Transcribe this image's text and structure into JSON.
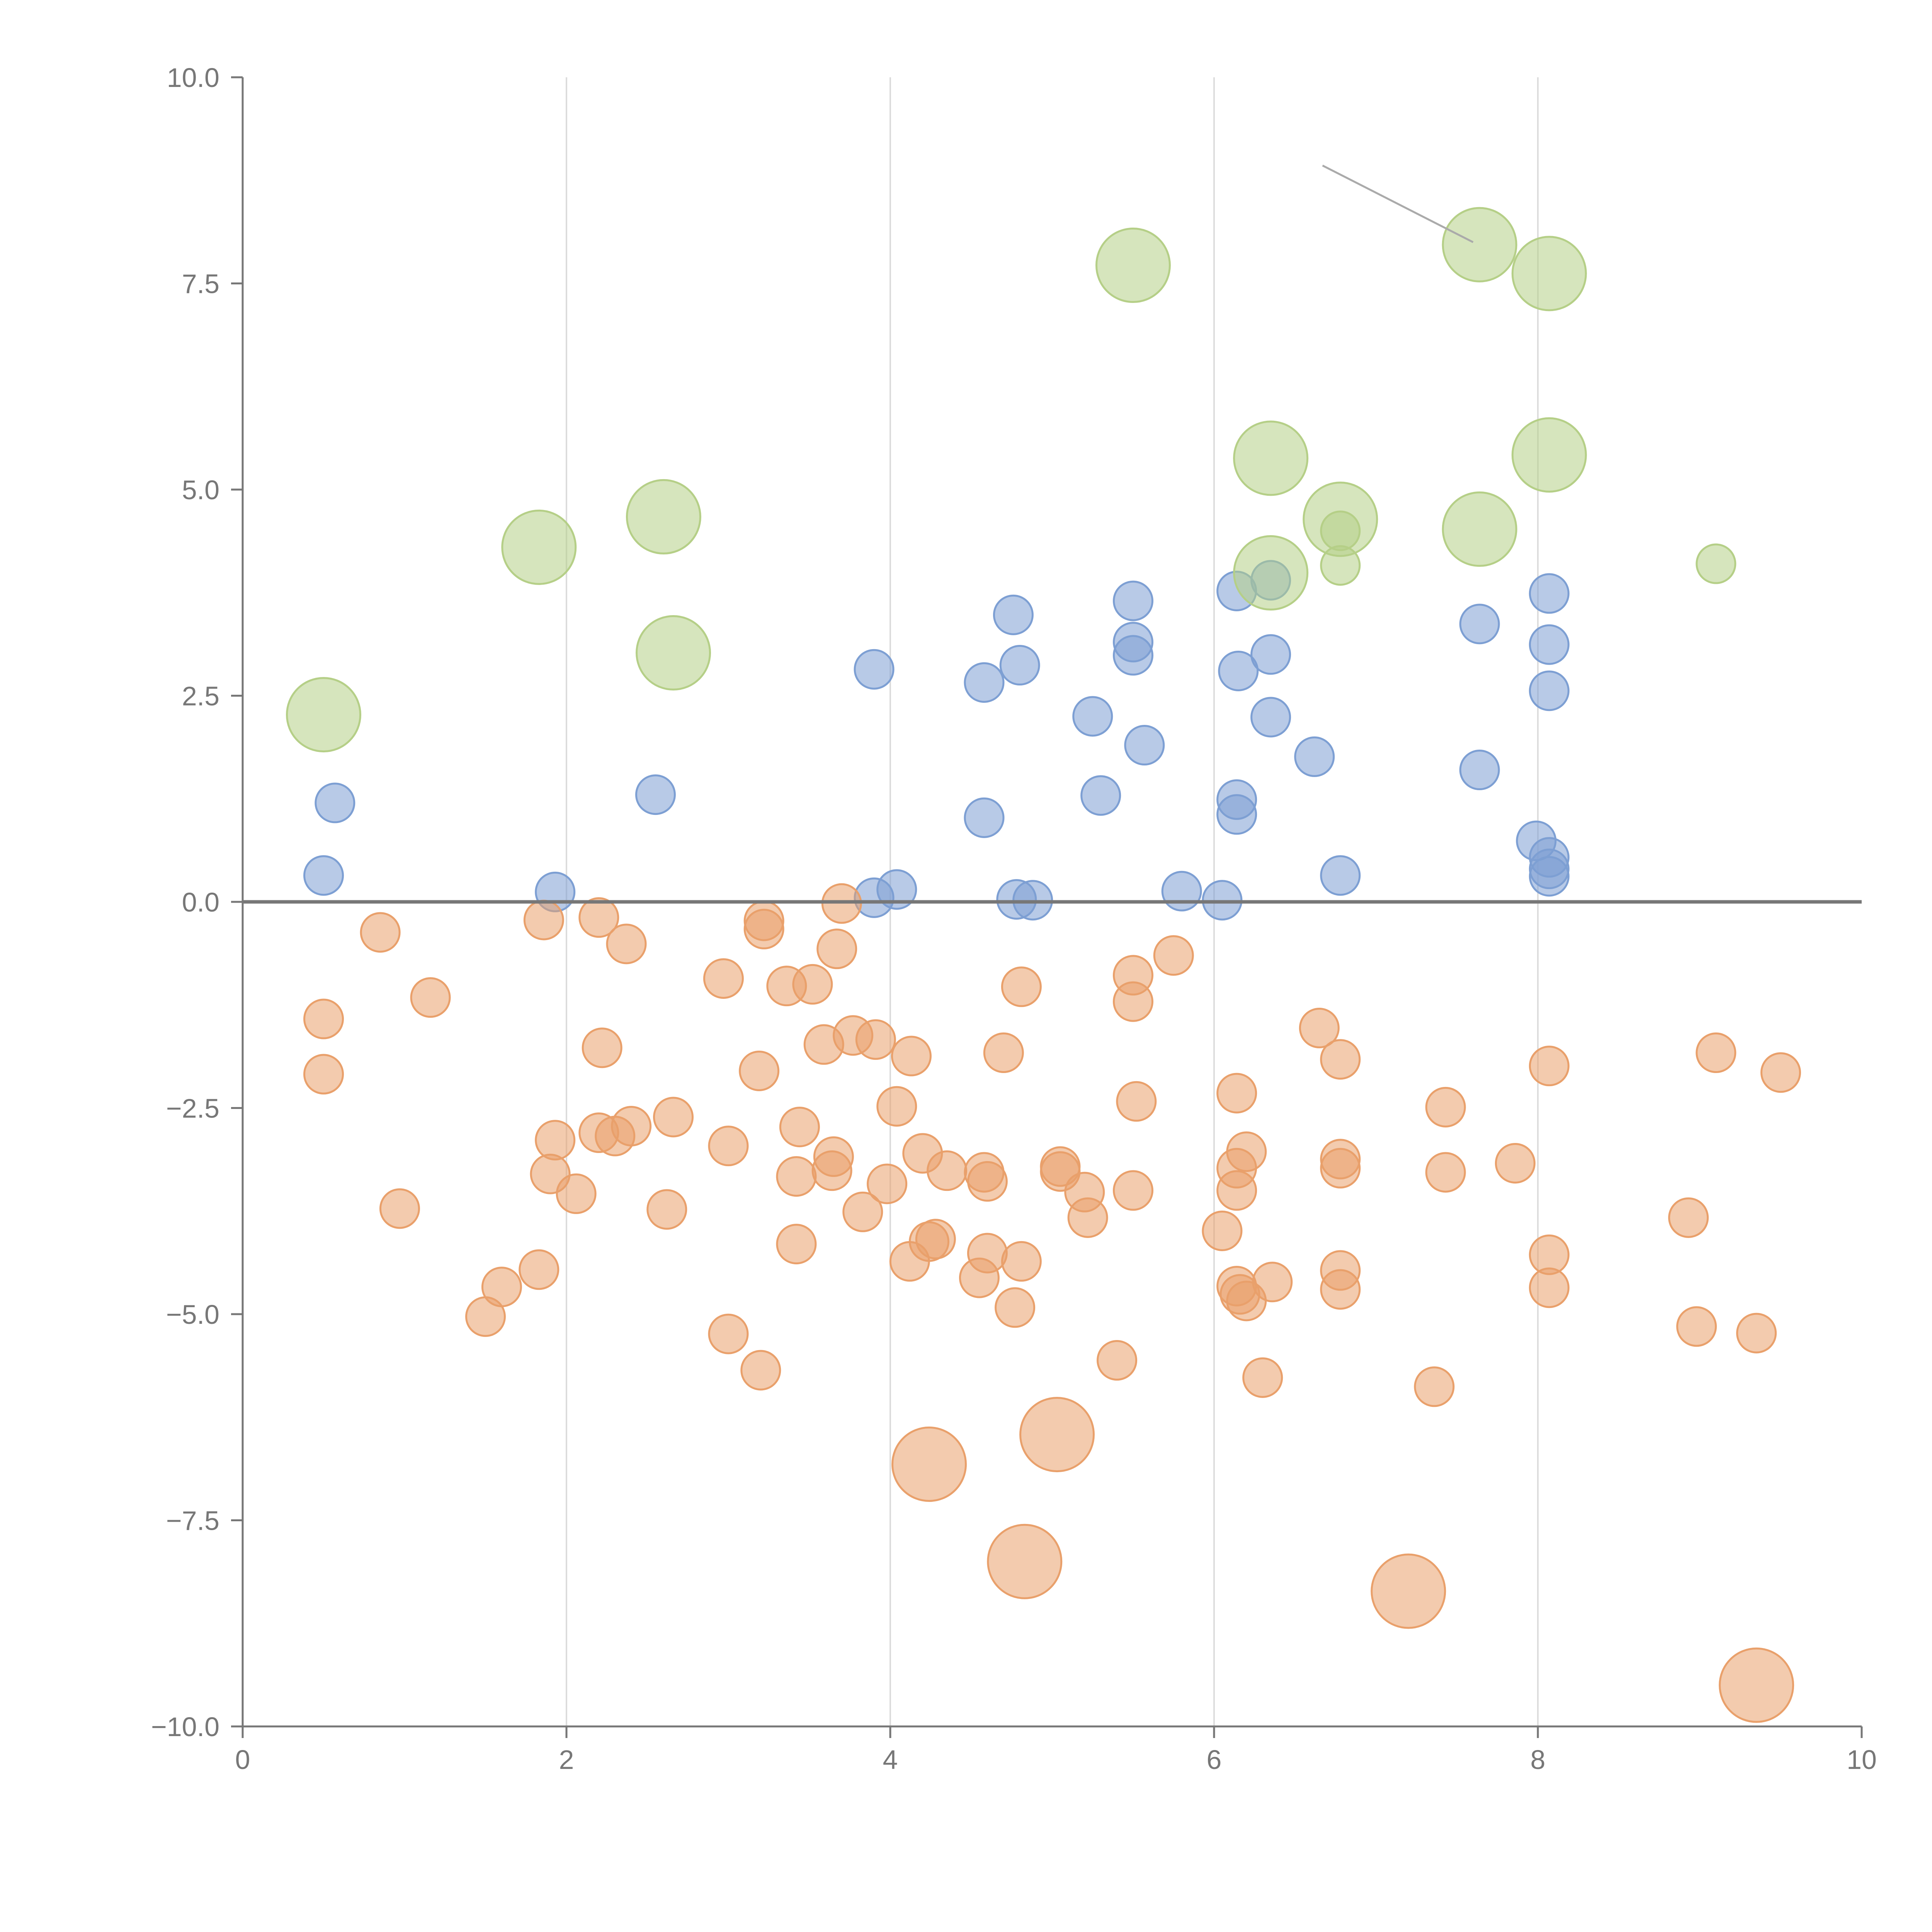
{
  "chart_data": {
    "type": "scatter",
    "title": "",
    "xlabel": "",
    "ylabel": "",
    "xlim": [
      0,
      10
    ],
    "ylim": [
      -10,
      10
    ],
    "x_ticks": [
      0,
      2,
      4,
      6,
      8,
      10
    ],
    "y_ticks": [
      -10,
      -7.5,
      -5,
      -2.5,
      0,
      2.5,
      5,
      7.5,
      10
    ],
    "x_tick_labels": [
      "0",
      "2",
      "4",
      "6",
      "8",
      "10"
    ],
    "y_tick_labels": [
      "−10.0",
      "−7.5",
      "−5.0",
      "−2.5",
      "0.0",
      "2.5",
      "5.0",
      "7.5",
      "10.0"
    ],
    "vertical_gridlines_at": [
      2,
      4,
      6,
      8
    ],
    "reference_line_y": 0,
    "bubble_size_scale": "small = 1, large = 2",
    "series": [
      {
        "name": "blue",
        "color": "#7d9fd3",
        "size": 1,
        "points": [
          [
            0.5,
            0.32
          ],
          [
            0.57,
            1.2
          ],
          [
            1.93,
            0.12
          ],
          [
            2.55,
            1.3
          ],
          [
            3.9,
            2.82
          ],
          [
            3.9,
            0.05
          ],
          [
            4.04,
            0.15
          ],
          [
            4.58,
            2.66
          ],
          [
            4.58,
            1.02
          ],
          [
            4.76,
            3.48
          ],
          [
            4.8,
            2.87
          ],
          [
            4.78,
            0.03
          ],
          [
            4.88,
            0.02
          ],
          [
            5.25,
            2.25
          ],
          [
            5.3,
            1.29
          ],
          [
            5.5,
            3.65
          ],
          [
            5.5,
            3.15
          ],
          [
            5.5,
            2.99
          ],
          [
            5.57,
            1.9
          ],
          [
            5.8,
            0.13
          ],
          [
            6.05,
            0.02
          ],
          [
            6.14,
            3.77
          ],
          [
            6.15,
            2.8
          ],
          [
            6.14,
            1.24
          ],
          [
            6.14,
            1.06
          ],
          [
            6.35,
            3.9
          ],
          [
            6.35,
            3.0
          ],
          [
            6.35,
            2.24
          ],
          [
            6.62,
            1.76
          ],
          [
            6.78,
            0.32
          ],
          [
            7.64,
            3.37
          ],
          [
            7.64,
            1.6
          ],
          [
            7.99,
            0.74
          ],
          [
            8.07,
            3.74
          ],
          [
            8.07,
            3.12
          ],
          [
            8.07,
            2.56
          ],
          [
            8.07,
            0.54
          ],
          [
            8.07,
            0.4
          ],
          [
            8.07,
            0.31
          ]
        ]
      },
      {
        "name": "orange",
        "color": "#e9a06b",
        "size": 1,
        "points": [
          [
            0.5,
            -1.42
          ],
          [
            0.5,
            -2.09
          ],
          [
            0.85,
            -0.37
          ],
          [
            0.97,
            -3.72
          ],
          [
            1.16,
            -1.16
          ],
          [
            1.5,
            -5.03
          ],
          [
            1.6,
            -4.67
          ],
          [
            1.83,
            -4.46
          ],
          [
            1.86,
            -0.22
          ],
          [
            1.9,
            -3.3
          ],
          [
            1.93,
            -2.89
          ],
          [
            2.06,
            -3.54
          ],
          [
            2.2,
            -2.8
          ],
          [
            2.2,
            -0.19
          ],
          [
            2.22,
            -1.77
          ],
          [
            2.3,
            -2.84
          ],
          [
            2.37,
            -0.51
          ],
          [
            2.4,
            -2.72
          ],
          [
            2.62,
            -3.73
          ],
          [
            2.66,
            -2.61
          ],
          [
            2.97,
            -0.93
          ],
          [
            3.0,
            -2.96
          ],
          [
            3.0,
            -5.24
          ],
          [
            3.19,
            -2.05
          ],
          [
            3.2,
            -5.68
          ],
          [
            3.22,
            -0.23
          ],
          [
            3.22,
            -0.33
          ],
          [
            3.36,
            -1.02
          ],
          [
            3.42,
            -4.15
          ],
          [
            3.42,
            -3.33
          ],
          [
            3.44,
            -2.73
          ],
          [
            3.52,
            -1.0
          ],
          [
            3.59,
            -1.73
          ],
          [
            3.64,
            -3.26
          ],
          [
            3.65,
            -3.09
          ],
          [
            3.67,
            -0.57
          ],
          [
            3.7,
            -0.02
          ],
          [
            3.77,
            -1.62
          ],
          [
            3.83,
            -3.76
          ],
          [
            3.91,
            -1.67
          ],
          [
            3.98,
            -3.42
          ],
          [
            4.04,
            -2.48
          ],
          [
            4.12,
            -4.36
          ],
          [
            4.13,
            -1.87
          ],
          [
            4.2,
            -3.05
          ],
          [
            4.24,
            -4.12
          ],
          [
            4.28,
            -4.09
          ],
          [
            4.35,
            -3.26
          ],
          [
            4.55,
            -4.56
          ],
          [
            4.58,
            -3.28
          ],
          [
            4.6,
            -3.39
          ],
          [
            4.6,
            -4.26
          ],
          [
            4.7,
            -1.83
          ],
          [
            4.77,
            -4.92
          ],
          [
            4.81,
            -4.36
          ],
          [
            4.81,
            -1.03
          ],
          [
            5.05,
            -3.21
          ],
          [
            5.05,
            -3.27
          ],
          [
            5.2,
            -3.52
          ],
          [
            5.22,
            -3.83
          ],
          [
            5.4,
            -5.56
          ],
          [
            5.5,
            -0.89
          ],
          [
            5.5,
            -1.21
          ],
          [
            5.5,
            -3.5
          ],
          [
            5.52,
            -2.42
          ],
          [
            5.75,
            -0.65
          ],
          [
            6.05,
            -3.99
          ],
          [
            6.14,
            -2.32
          ],
          [
            6.14,
            -3.23
          ],
          [
            6.14,
            -3.5
          ],
          [
            6.14,
            -4.66
          ],
          [
            6.16,
            -4.76
          ],
          [
            6.2,
            -4.84
          ],
          [
            6.2,
            -3.03
          ],
          [
            6.3,
            -5.77
          ],
          [
            6.36,
            -4.61
          ],
          [
            6.65,
            -1.53
          ],
          [
            6.78,
            -1.91
          ],
          [
            6.78,
            -3.12
          ],
          [
            6.78,
            -3.23
          ],
          [
            6.78,
            -4.47
          ],
          [
            6.78,
            -4.7
          ],
          [
            7.36,
            -5.88
          ],
          [
            7.43,
            -2.49
          ],
          [
            7.43,
            -3.28
          ],
          [
            7.86,
            -3.17
          ],
          [
            8.07,
            -1.99
          ],
          [
            8.07,
            -4.28
          ],
          [
            8.07,
            -4.68
          ],
          [
            8.93,
            -3.83
          ],
          [
            8.98,
            -5.15
          ],
          [
            9.1,
            -1.83
          ],
          [
            9.35,
            -5.23
          ],
          [
            9.5,
            -2.07
          ]
        ]
      },
      {
        "name": "orange-large",
        "color": "#e9a06b",
        "size": 2,
        "points": [
          [
            4.24,
            -6.82
          ],
          [
            4.83,
            -8.0
          ],
          [
            5.03,
            -6.46
          ],
          [
            7.2,
            -8.36
          ],
          [
            9.35,
            -9.5
          ]
        ]
      },
      {
        "name": "green",
        "color": "#b5cf87",
        "size": 2,
        "points": [
          [
            0.5,
            2.27
          ],
          [
            1.83,
            4.3
          ],
          [
            2.6,
            4.67
          ],
          [
            2.66,
            3.02
          ],
          [
            5.5,
            7.72
          ],
          [
            6.35,
            5.38
          ],
          [
            6.35,
            3.99
          ],
          [
            6.78,
            4.64
          ],
          [
            7.64,
            7.97
          ],
          [
            7.64,
            4.52
          ],
          [
            8.07,
            7.62
          ],
          [
            8.07,
            5.42
          ]
        ]
      },
      {
        "name": "green-small",
        "color": "#b5cf87",
        "size": 1,
        "points": [
          [
            6.78,
            4.5
          ],
          [
            6.78,
            4.08
          ],
          [
            9.1,
            4.1
          ]
        ]
      }
    ]
  }
}
